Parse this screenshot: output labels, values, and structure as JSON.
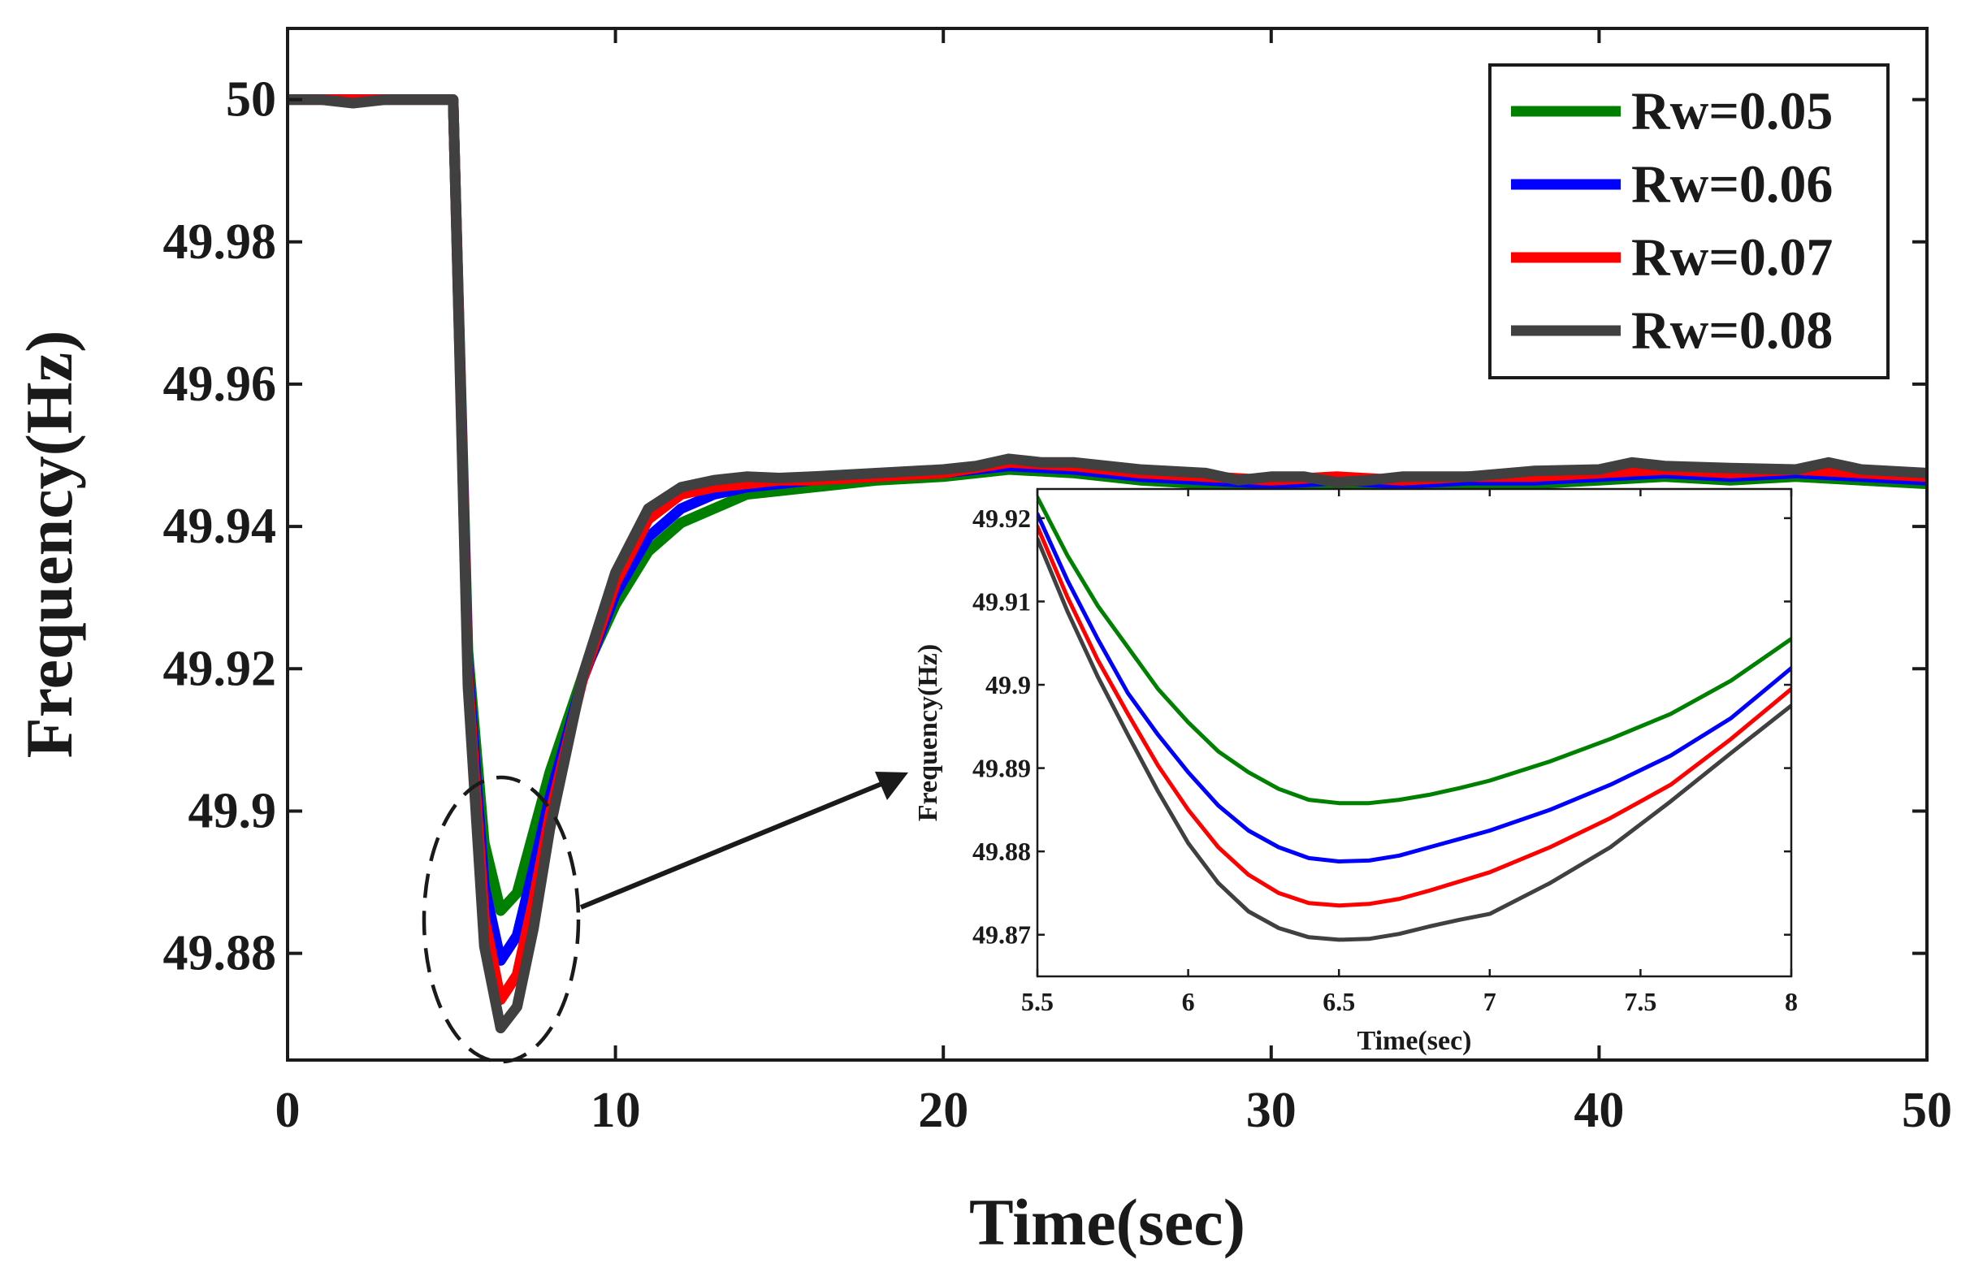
{
  "chart_data": [
    {
      "type": "line",
      "title": "",
      "xlabel": "Time(sec)",
      "ylabel": "Frequency(Hz)",
      "xlim": [
        0,
        50
      ],
      "ylim": [
        49.865,
        50.01
      ],
      "xticks": [
        0,
        10,
        20,
        30,
        40,
        50
      ],
      "yticks": [
        49.88,
        49.9,
        49.92,
        49.94,
        49.96,
        49.98,
        50
      ],
      "xtick_labels": [
        "0",
        "10",
        "20",
        "30",
        "40",
        "50"
      ],
      "ytick_labels": [
        "49.88",
        "49.9",
        "49.92",
        "49.94",
        "49.96",
        "49.98",
        "50"
      ],
      "legend_position": "top-right",
      "series": [
        {
          "name": "Rw=0.05",
          "color": "#008000",
          "x": [
            0,
            2,
            4,
            5.05,
            5.5,
            6.0,
            6.5,
            7.0,
            7.5,
            8.0,
            9,
            10,
            11,
            12,
            13,
            14,
            15,
            16,
            18,
            20,
            22,
            24,
            26,
            28,
            30,
            32,
            34,
            36,
            38,
            40,
            42,
            44,
            46,
            48,
            50
          ],
          "y": [
            50.0,
            50.0,
            50.0,
            50.0,
            49.9225,
            49.8955,
            49.886,
            49.8885,
            49.897,
            49.9055,
            49.919,
            49.929,
            49.9365,
            49.9405,
            49.9425,
            49.9445,
            49.945,
            49.9455,
            49.9465,
            49.947,
            49.948,
            49.9475,
            49.9465,
            49.946,
            49.9455,
            49.946,
            49.9455,
            49.946,
            49.946,
            49.9465,
            49.947,
            49.9465,
            49.947,
            49.9465,
            49.946
          ]
        },
        {
          "name": "Rw=0.06",
          "color": "#0000ff",
          "x": [
            0,
            2,
            4,
            5.05,
            5.5,
            6.0,
            6.5,
            7.0,
            7.5,
            8.0,
            9,
            10,
            11,
            12,
            13,
            14,
            15,
            16,
            18,
            20,
            22,
            24,
            26,
            28,
            30,
            32,
            34,
            36,
            38,
            40,
            42,
            44,
            46,
            48,
            50
          ],
          "y": [
            50.0,
            50.0,
            50.0,
            50.0,
            49.9205,
            49.8895,
            49.879,
            49.8825,
            49.892,
            49.902,
            49.9185,
            49.9305,
            49.9385,
            49.9425,
            49.9445,
            49.9455,
            49.946,
            49.9465,
            49.947,
            49.9475,
            49.9485,
            49.948,
            49.947,
            49.9465,
            49.946,
            49.9465,
            49.946,
            49.9465,
            49.9465,
            49.947,
            49.9475,
            49.947,
            49.9475,
            49.947,
            49.9465
          ]
        },
        {
          "name": "Rw=0.07",
          "color": "#ff0000",
          "x": [
            0,
            2,
            4,
            5.05,
            5.5,
            6.0,
            6.5,
            7.0,
            7.5,
            8.0,
            9,
            10,
            11,
            12,
            13,
            14,
            15,
            16,
            18,
            20,
            22,
            24,
            26,
            28,
            30,
            32,
            34,
            36,
            38,
            40,
            42,
            44,
            46,
            48,
            50
          ],
          "y": [
            50.0,
            50.0,
            50.0,
            50.0,
            49.919,
            49.885,
            49.8735,
            49.877,
            49.8875,
            49.8995,
            49.9185,
            49.932,
            49.941,
            49.9445,
            49.9455,
            49.946,
            49.9465,
            49.9465,
            49.947,
            49.9475,
            49.949,
            49.9485,
            49.9475,
            49.947,
            49.9465,
            49.947,
            49.9465,
            49.947,
            49.947,
            49.9475,
            49.948,
            49.9475,
            49.948,
            49.9475,
            49.947
          ]
        },
        {
          "name": "Rw=0.08",
          "color": "#404040",
          "x": [
            0,
            1,
            2,
            3,
            4,
            5.05,
            5.5,
            6.0,
            6.5,
            7.0,
            7.5,
            8.0,
            9,
            10,
            11,
            12,
            13,
            14,
            15,
            16,
            18,
            20,
            21,
            22,
            23,
            24,
            26,
            28,
            29,
            30,
            31,
            32,
            33,
            34,
            36,
            38,
            40,
            41,
            42,
            44,
            46,
            47,
            48,
            50
          ],
          "y": [
            50.0,
            50.0,
            49.9995,
            50.0,
            50.0,
            50.0,
            49.9175,
            49.881,
            49.8695,
            49.8725,
            49.8835,
            49.8975,
            49.919,
            49.9335,
            49.9425,
            49.9455,
            49.9465,
            49.947,
            49.9468,
            49.947,
            49.9475,
            49.948,
            49.9485,
            49.9495,
            49.949,
            49.949,
            49.948,
            49.9475,
            49.9465,
            49.947,
            49.947,
            49.9462,
            49.9465,
            49.947,
            49.947,
            49.9478,
            49.948,
            49.949,
            49.9485,
            49.9482,
            49.948,
            49.949,
            49.948,
            49.9475
          ]
        }
      ]
    },
    {
      "type": "line",
      "title": "",
      "xlabel": "Time(sec)",
      "ylabel": "Frequency(Hz)",
      "xlim": [
        5.5,
        8
      ],
      "ylim": [
        49.865,
        49.9235
      ],
      "xticks": [
        5.5,
        6,
        6.5,
        7,
        7.5,
        8
      ],
      "yticks": [
        49.87,
        49.88,
        49.89,
        49.9,
        49.91,
        49.92
      ],
      "xtick_labels": [
        "5.5",
        "6",
        "6.5",
        "7",
        "7.5",
        "8"
      ],
      "ytick_labels": [
        "49.87",
        "49.88",
        "49.89",
        "49.9",
        "49.91",
        "49.92"
      ],
      "series": [
        {
          "name": "Rw=0.05",
          "color": "#008000",
          "x": [
            5.5,
            5.6,
            5.7,
            5.8,
            5.9,
            6.0,
            6.1,
            6.2,
            6.3,
            6.4,
            6.5,
            6.6,
            6.7,
            6.8,
            6.9,
            7.0,
            7.2,
            7.4,
            7.6,
            7.8,
            8.0
          ],
          "y": [
            49.9225,
            49.9155,
            49.9095,
            49.9045,
            49.8995,
            49.8955,
            49.892,
            49.8895,
            49.8875,
            49.8862,
            49.8858,
            49.8858,
            49.8862,
            49.8868,
            49.8876,
            49.8885,
            49.8908,
            49.8935,
            49.8965,
            49.9005,
            49.9055
          ]
        },
        {
          "name": "Rw=0.06",
          "color": "#0000ff",
          "x": [
            5.5,
            5.6,
            5.7,
            5.8,
            5.9,
            6.0,
            6.1,
            6.2,
            6.3,
            6.4,
            6.5,
            6.6,
            6.7,
            6.8,
            6.9,
            7.0,
            7.2,
            7.4,
            7.6,
            7.8,
            8.0
          ],
          "y": [
            49.9205,
            49.9125,
            49.9055,
            49.899,
            49.894,
            49.8895,
            49.8855,
            49.8825,
            49.8805,
            49.8792,
            49.8788,
            49.8789,
            49.8795,
            49.8805,
            49.8815,
            49.8825,
            49.885,
            49.888,
            49.8915,
            49.896,
            49.902
          ]
        },
        {
          "name": "Rw=0.07",
          "color": "#ff0000",
          "x": [
            5.5,
            5.6,
            5.7,
            5.8,
            5.9,
            6.0,
            6.1,
            6.2,
            6.3,
            6.4,
            6.5,
            6.6,
            6.7,
            6.8,
            6.9,
            7.0,
            7.2,
            7.4,
            7.6,
            7.8,
            8.0
          ],
          "y": [
            49.919,
            49.9105,
            49.903,
            49.8965,
            49.8903,
            49.885,
            49.8805,
            49.8772,
            49.875,
            49.8738,
            49.8735,
            49.8737,
            49.8743,
            49.8753,
            49.8764,
            49.8775,
            49.8805,
            49.884,
            49.888,
            49.8935,
            49.8995
          ]
        },
        {
          "name": "Rw=0.08",
          "color": "#404040",
          "x": [
            5.5,
            5.6,
            5.7,
            5.8,
            5.9,
            6.0,
            6.1,
            6.2,
            6.3,
            6.4,
            6.5,
            6.6,
            6.7,
            6.8,
            6.9,
            7.0,
            7.2,
            7.4,
            7.6,
            7.8,
            8.0
          ],
          "y": [
            49.9175,
            49.9088,
            49.901,
            49.894,
            49.8872,
            49.881,
            49.8762,
            49.8728,
            49.8708,
            49.8697,
            49.8694,
            49.8695,
            49.8701,
            49.871,
            49.8718,
            49.8725,
            49.8762,
            49.8805,
            49.886,
            49.8918,
            49.8975
          ]
        }
      ]
    }
  ]
}
